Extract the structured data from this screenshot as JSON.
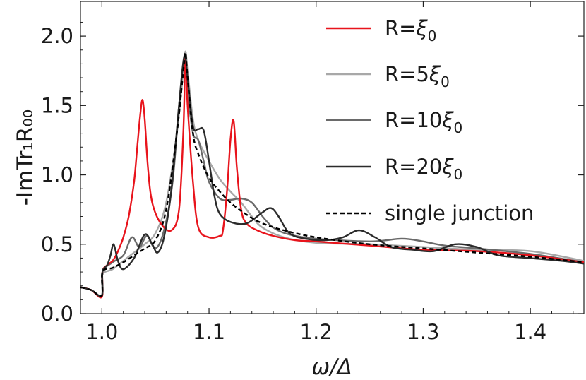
{
  "chart_data": {
    "type": "line",
    "xlabel": "ω/Δ",
    "ylabel": "-ImTr₁R₀₀",
    "xlim": [
      0.98,
      1.45
    ],
    "ylim": [
      0.0,
      2.25
    ],
    "x_ticks": [
      "1.0",
      "1.1",
      "1.2",
      "1.3",
      "1.4"
    ],
    "y_ticks": [
      "0.0",
      "0.5",
      "1.0",
      "1.5",
      "2.0"
    ],
    "grid": false,
    "legend_placement": "top-right",
    "series": [
      {
        "name": "R=ξ0",
        "legend_main": "R=ξ",
        "legend_sub": "0",
        "color": "#e8141c",
        "dashed": false,
        "x": [
          0.98,
          0.99,
          1.0,
          1.0005,
          1.005,
          1.01,
          1.015,
          1.02,
          1.025,
          1.03,
          1.033,
          1.036,
          1.038,
          1.04,
          1.043,
          1.047,
          1.055,
          1.065,
          1.072,
          1.076,
          1.078,
          1.08,
          1.085,
          1.09,
          1.1,
          1.11,
          1.113,
          1.117,
          1.12,
          1.123,
          1.126,
          1.13,
          1.135,
          1.145,
          1.16,
          1.18,
          1.2,
          1.25,
          1.3,
          1.35,
          1.4,
          1.45
        ],
        "y": [
          0.19,
          0.17,
          0.12,
          0.3,
          0.35,
          0.38,
          0.45,
          0.55,
          0.7,
          0.95,
          1.2,
          1.45,
          1.54,
          1.4,
          1.05,
          0.8,
          0.65,
          0.6,
          0.75,
          1.3,
          1.84,
          1.5,
          0.95,
          0.62,
          0.55,
          0.56,
          0.6,
          0.9,
          1.25,
          1.39,
          1.05,
          0.75,
          0.65,
          0.6,
          0.56,
          0.53,
          0.52,
          0.49,
          0.46,
          0.45,
          0.42,
          0.37
        ]
      },
      {
        "name": "R=5ξ0",
        "legend_main": "R=5ξ",
        "legend_sub": "0",
        "color": "#a8a8a8",
        "dashed": false,
        "x": [
          0.98,
          0.99,
          1.0,
          1.0005,
          1.01,
          1.02,
          1.03,
          1.04,
          1.05,
          1.06,
          1.07,
          1.076,
          1.078,
          1.08,
          1.085,
          1.09,
          1.1,
          1.11,
          1.12,
          1.13,
          1.14,
          1.15,
          1.17,
          1.2,
          1.25,
          1.3,
          1.35,
          1.4,
          1.45
        ],
        "y": [
          0.19,
          0.17,
          0.13,
          0.28,
          0.32,
          0.38,
          0.44,
          0.5,
          0.58,
          0.8,
          1.3,
          1.75,
          1.89,
          1.75,
          1.4,
          1.25,
          1.1,
          0.97,
          0.88,
          0.8,
          0.7,
          0.62,
          0.55,
          0.51,
          0.5,
          0.48,
          0.46,
          0.45,
          0.38
        ]
      },
      {
        "name": "R=10ξ0",
        "legend_main": "R=10ξ",
        "legend_sub": "0",
        "color": "#6a6a6a",
        "dashed": false,
        "x": [
          0.98,
          0.99,
          1.0,
          1.0005,
          1.01,
          1.02,
          1.028,
          1.035,
          1.042,
          1.05,
          1.058,
          1.066,
          1.072,
          1.077,
          1.08,
          1.085,
          1.09,
          1.095,
          1.1,
          1.11,
          1.12,
          1.13,
          1.14,
          1.15,
          1.16,
          1.175,
          1.2,
          1.25,
          1.28,
          1.3,
          1.32,
          1.35,
          1.4,
          1.45
        ],
        "y": [
          0.19,
          0.17,
          0.13,
          0.3,
          0.37,
          0.42,
          0.55,
          0.48,
          0.56,
          0.47,
          0.6,
          0.95,
          1.5,
          1.85,
          1.6,
          1.3,
          1.25,
          1.1,
          0.95,
          0.83,
          0.82,
          0.83,
          0.8,
          0.7,
          0.62,
          0.57,
          0.54,
          0.52,
          0.54,
          0.52,
          0.49,
          0.47,
          0.43,
          0.37
        ]
      },
      {
        "name": "R=20ξ0",
        "legend_main": "R=20ξ",
        "legend_sub": "0",
        "color": "#2b2b2b",
        "dashed": false,
        "x": [
          0.98,
          0.99,
          1.0,
          1.0005,
          1.005,
          1.008,
          1.011,
          1.015,
          1.02,
          1.03,
          1.04,
          1.047,
          1.052,
          1.058,
          1.065,
          1.072,
          1.077,
          1.08,
          1.085,
          1.09,
          1.095,
          1.1,
          1.105,
          1.11,
          1.12,
          1.135,
          1.15,
          1.158,
          1.165,
          1.175,
          1.19,
          1.21,
          1.225,
          1.24,
          1.255,
          1.27,
          1.29,
          1.31,
          1.33,
          1.35,
          1.37,
          1.4,
          1.43,
          1.45
        ],
        "y": [
          0.19,
          0.17,
          0.13,
          0.3,
          0.35,
          0.42,
          0.5,
          0.38,
          0.32,
          0.4,
          0.57,
          0.5,
          0.44,
          0.55,
          0.9,
          1.5,
          1.86,
          1.7,
          1.35,
          1.33,
          1.32,
          1.1,
          0.85,
          0.72,
          0.66,
          0.65,
          0.73,
          0.76,
          0.7,
          0.58,
          0.54,
          0.53,
          0.55,
          0.6,
          0.55,
          0.48,
          0.46,
          0.45,
          0.5,
          0.48,
          0.42,
          0.4,
          0.38,
          0.36
        ]
      },
      {
        "name": "single junction",
        "legend_main": "single junction",
        "legend_sub": "",
        "color": "#000000",
        "dashed": true,
        "x": [
          0.98,
          0.99,
          1.0,
          1.0005,
          1.01,
          1.02,
          1.03,
          1.04,
          1.05,
          1.06,
          1.07,
          1.076,
          1.078,
          1.08,
          1.085,
          1.09,
          1.1,
          1.11,
          1.12,
          1.13,
          1.14,
          1.15,
          1.17,
          1.2,
          1.25,
          1.3,
          1.35,
          1.4,
          1.45
        ],
        "y": [
          0.19,
          0.17,
          0.13,
          0.3,
          0.33,
          0.37,
          0.42,
          0.47,
          0.53,
          0.75,
          1.3,
          1.75,
          1.88,
          1.7,
          1.3,
          1.15,
          0.98,
          0.88,
          0.8,
          0.74,
          0.69,
          0.65,
          0.6,
          0.55,
          0.5,
          0.47,
          0.44,
          0.41,
          0.37
        ]
      }
    ]
  }
}
